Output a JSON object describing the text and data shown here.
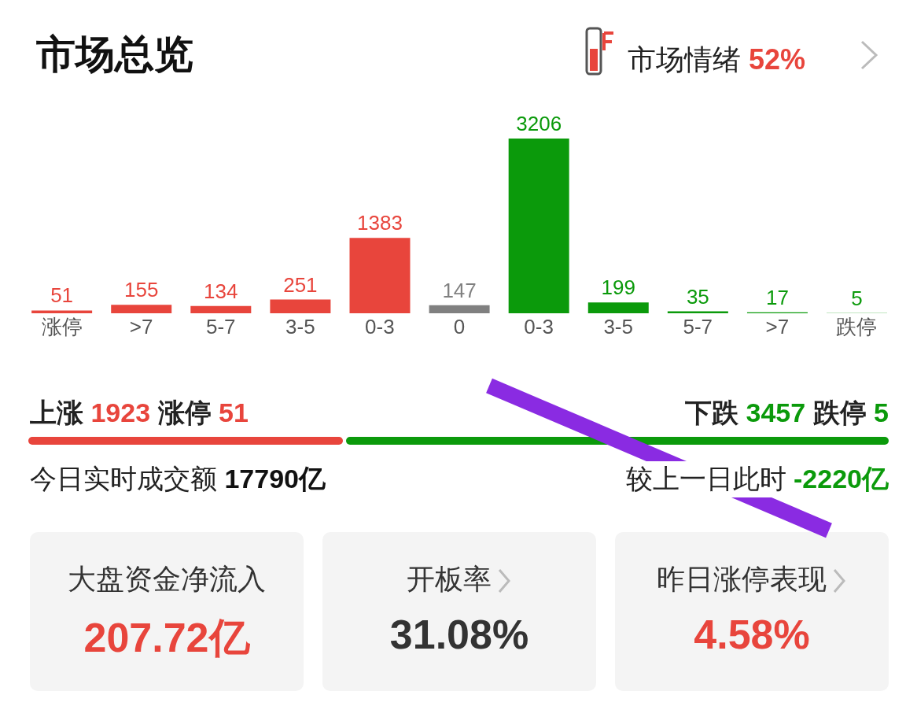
{
  "chart_data": {
    "type": "bar",
    "title": "市场总览",
    "categories": [
      "涨停",
      ">7",
      "5-7",
      "3-5",
      "0-3",
      "0",
      "0-3",
      "3-5",
      "5-7",
      ">7",
      "跌停"
    ],
    "values": [
      51,
      155,
      134,
      251,
      1383,
      147,
      3206,
      199,
      35,
      17,
      5
    ],
    "colors": [
      "#e8453c",
      "#e8453c",
      "#e8453c",
      "#e8453c",
      "#e8453c",
      "#808080",
      "#0b9a0b",
      "#0b9a0b",
      "#0b9a0b",
      "#0b9a0b",
      "#0b9a0b"
    ],
    "data_labels": true,
    "annotations": [
      "市场情绪 52%",
      "上涨 1923 涨停 51",
      "下跌 3457 跌停 5",
      "今日实时成交额 17790亿",
      "较上一日此时 -2220亿",
      "大盘资金净流入",
      "207.72亿",
      "开板率",
      "31.08%",
      "昨日涨停表现",
      "4.58%"
    ]
  }
}
